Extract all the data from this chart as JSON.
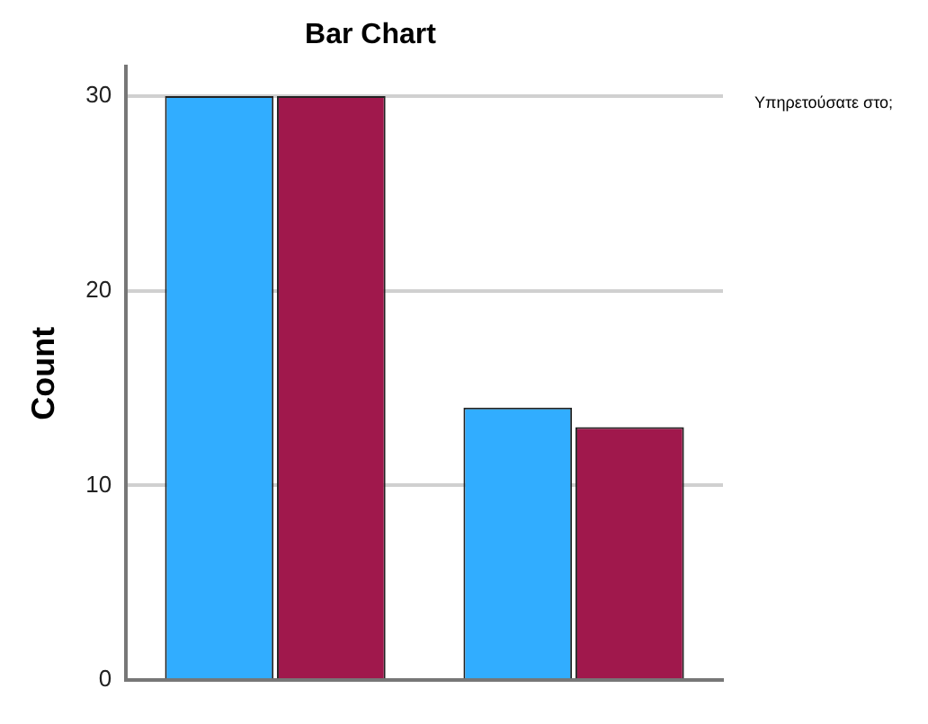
{
  "chart_data": {
    "type": "bar",
    "title": "Bar Chart",
    "ylabel": "Count",
    "legend_title": "Υπηρετούσατε στο;",
    "categories": [
      null,
      null
    ],
    "series": [
      {
        "color": "#31adff",
        "values": [
          30,
          14
        ]
      },
      {
        "color": "#a0184c",
        "values": [
          30,
          13
        ]
      }
    ],
    "ylim": [
      0,
      31.5
    ],
    "yticks": [
      0,
      10,
      20,
      30
    ],
    "grid": "y"
  }
}
